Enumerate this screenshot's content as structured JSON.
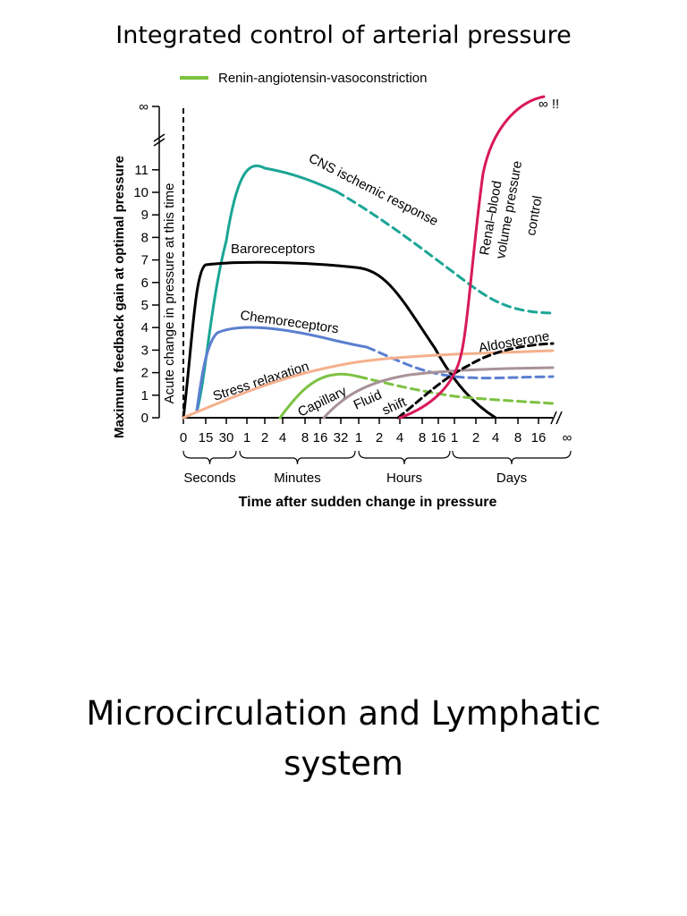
{
  "slide": {
    "title": "Integrated control of arterial pressure",
    "subtitle_line1": "Microcirculation and Lymphatic",
    "subtitle_line2": "system"
  },
  "chart_data": {
    "type": "line",
    "ylabel_outer": "Maximum feedback gain at optimal pressure",
    "ylabel_inner": "Acute change in pressure at this time",
    "xlabel": "Time after sudden change in pressure",
    "y_ticks": [
      "0",
      "1",
      "2",
      "3",
      "4",
      "5",
      "6",
      "7",
      "8",
      "9",
      "10",
      "11"
    ],
    "y_infinity": "∞",
    "ylim": [
      0,
      12
    ],
    "x_ticks": [
      "0",
      "15",
      "30",
      "1",
      "2",
      "4",
      "8",
      "16",
      "32",
      "1",
      "2",
      "4",
      "8",
      "16",
      "1",
      "2",
      "4",
      "8",
      "16",
      "∞"
    ],
    "x_groups": [
      "Seconds",
      "Minutes",
      "Hours",
      "Days"
    ],
    "x_scale": "ordinal (log-like time, 0 s to ∞)",
    "legend": {
      "renin_angiotensin": "Renin-angiotensin-vasoconstriction"
    },
    "labels": {
      "cns": "CNS ischemic response",
      "baro": "Baroreceptors",
      "chemo": "Chemoreceptors",
      "stress": "Stress relaxation",
      "capillary": "Capillary",
      "fluid1": "Fluid",
      "fluid2": "shift",
      "aldo": "Aldosterone",
      "renal1": "Renal–blood",
      "renal2": "volume pressure",
      "renal3": "control",
      "renal_inf": "∞ !!"
    },
    "colors": {
      "cns": "#1aa596",
      "baro": "#000000",
      "chemo": "#5a7fd0",
      "stress": "#f5b08c",
      "renin": "#7cc242",
      "fluid": "#a89298",
      "aldo": "#000000",
      "renal": "#d8195a"
    },
    "series": [
      {
        "name": "CNS ischemic response",
        "line": "solid then dashed",
        "x": [
          "15 s",
          "30 s",
          "1 min",
          "2 min",
          "4 min",
          "16 min",
          "1 h",
          "4 h",
          "1 d",
          "4 d",
          "16 d"
        ],
        "y": [
          0.5,
          3,
          9.5,
          11.1,
          11.0,
          10.3,
          9.5,
          7.5,
          6,
          5,
          4.7
        ]
      },
      {
        "name": "Baroreceptors",
        "line": "solid",
        "x": [
          "0 s",
          "15 s",
          "30 s",
          "1 min",
          "16 min",
          "1 h",
          "4 h",
          "16 h",
          "1 d",
          "4 d"
        ],
        "y": [
          0,
          6.5,
          6.9,
          6.9,
          6.8,
          6.5,
          5.4,
          3.2,
          2,
          0
        ]
      },
      {
        "name": "Chemoreceptors",
        "line": "solid then dashed",
        "x": [
          "15 s",
          "30 s",
          "1 min",
          "2 min",
          "16 min",
          "1 h",
          "4 h",
          "16 h",
          "1 d",
          "16 d"
        ],
        "y": [
          0.3,
          3.2,
          3.8,
          4.0,
          3.8,
          3.2,
          2.5,
          2.0,
          1.8,
          1.8
        ]
      },
      {
        "name": "Stress relaxation",
        "line": "solid",
        "x": [
          "0 s",
          "1 min",
          "8 min",
          "1 h",
          "4 h",
          "1 d",
          "∞"
        ],
        "y": [
          0,
          0.5,
          1.5,
          2.5,
          2.7,
          2.9,
          3.0
        ]
      },
      {
        "name": "Capillary",
        "line": "solid then dashed",
        "x": [
          "4 min",
          "16 min",
          "1 h",
          "4 h",
          "1 d",
          "∞"
        ],
        "y": [
          0,
          1.9,
          1.7,
          1.3,
          0.9,
          0.6
        ]
      },
      {
        "name": "Fluid shift",
        "line": "solid",
        "x": [
          "16 min",
          "1 h",
          "4 h",
          "16 h",
          "1 d",
          "∞"
        ],
        "y": [
          0,
          1.0,
          1.5,
          1.9,
          2.1,
          2.2
        ]
      },
      {
        "name": "Aldosterone",
        "line": "dashed",
        "x": [
          "4 h",
          "16 h",
          "1 d",
          "4 d",
          "∞"
        ],
        "y": [
          0,
          1.5,
          2.2,
          3.0,
          3.3
        ]
      },
      {
        "name": "Renal–blood volume pressure control",
        "line": "solid",
        "x": [
          "4 h",
          "16 h",
          "1 d",
          "2 d",
          "4 d",
          "16 d"
        ],
        "y": [
          0,
          0.5,
          2.5,
          8,
          11.5,
          14
        ]
      }
    ]
  }
}
